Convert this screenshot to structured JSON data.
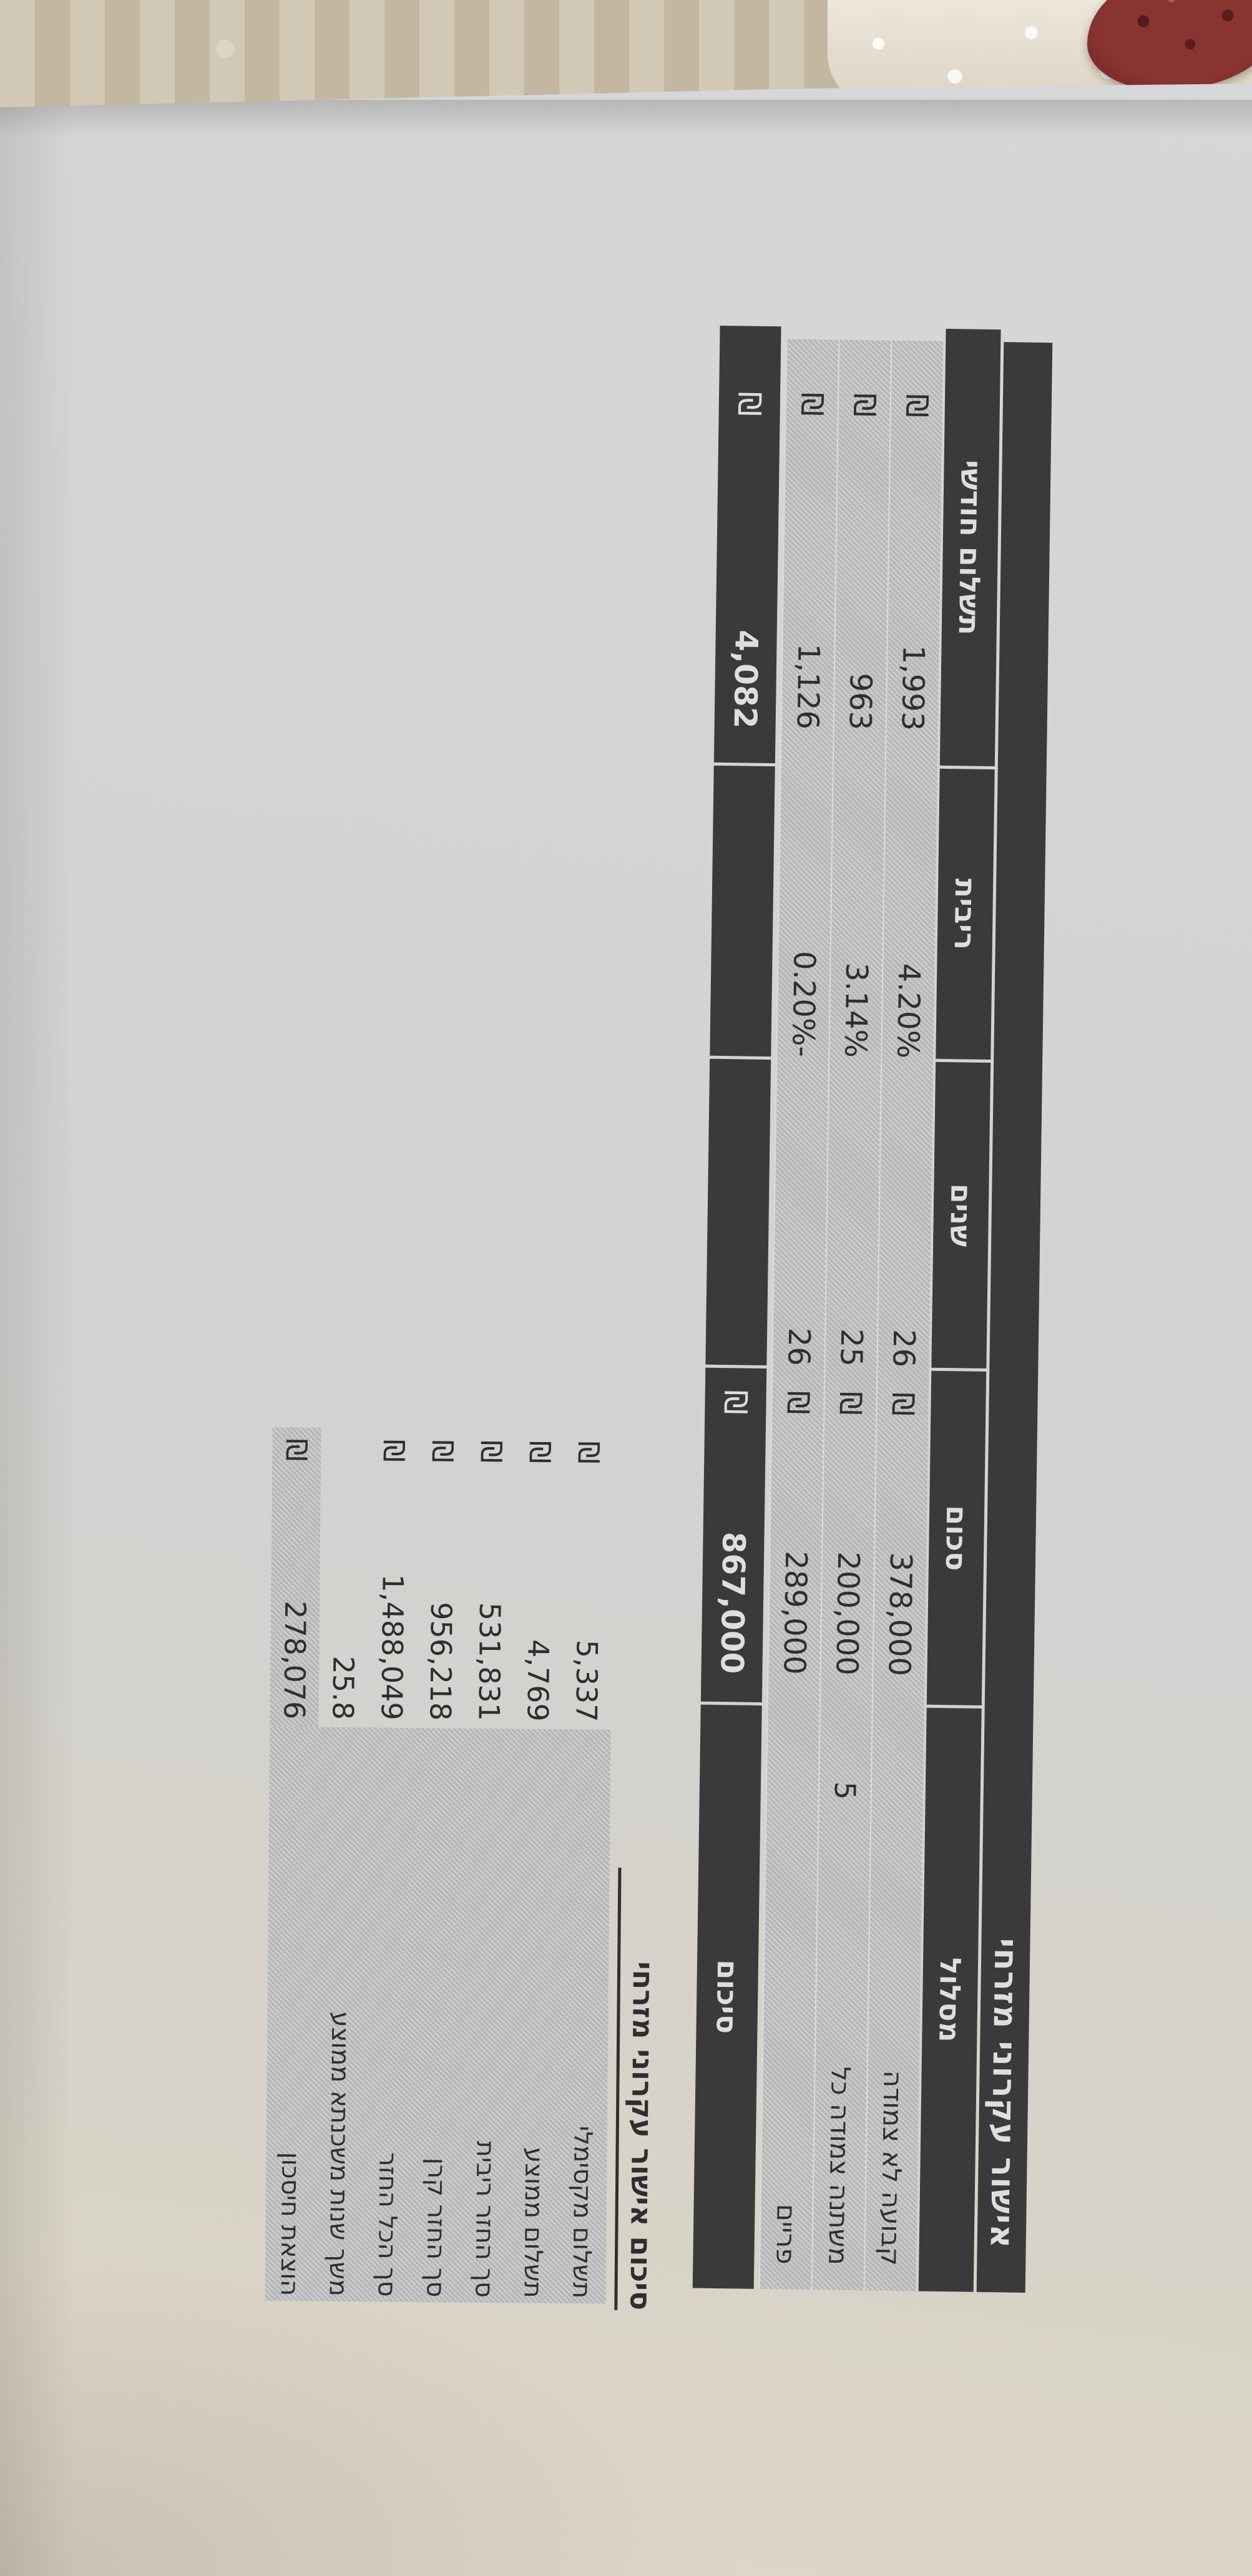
{
  "currency_symbol": "₪",
  "colors": {
    "paper": "#d3d4d6",
    "bar_black": "#3a3a3d",
    "row_gray": "#bcbdbf",
    "cloth_tan": "#cbc0ac",
    "crochet_red": "#8a3431",
    "ink": "#2e2e31"
  },
  "main_table": {
    "title": "אישור עקרוני מזרחי",
    "columns": {
      "track": "מסלול",
      "amount": "סכום",
      "years": "שנים",
      "rate": "ריבית",
      "payment": "תשלום חודשי"
    },
    "rows": [
      {
        "track": "קבועה לא צמודה",
        "track_suffix": "",
        "amount": "378,000",
        "years": "26",
        "rate": "4.20%",
        "payment": "1,993"
      },
      {
        "track": "משתנה צמודה כל",
        "track_suffix": "5",
        "amount": "200,000",
        "years": "25",
        "rate": "3.14%",
        "payment": "963"
      },
      {
        "track": "פריים",
        "track_suffix": "",
        "amount": "289,000",
        "years": "26",
        "rate": "0.20%-",
        "payment": "1,126"
      }
    ],
    "summary_row": {
      "label": "סיכום",
      "amount": "867,000",
      "payment": "4,082"
    }
  },
  "summary_block": {
    "title": "סיכום אישור עקרוני מזרחי",
    "rows": [
      {
        "label": "תשלום מקסימלי",
        "value": "5,337",
        "has_currency": true
      },
      {
        "label": "תשלום ממוצע",
        "value": "4,769",
        "has_currency": true
      },
      {
        "label": "סך החזר ריבית",
        "value": "531,831",
        "has_currency": true
      },
      {
        "label": "סך החזר קרן",
        "value": "956,218",
        "has_currency": true
      },
      {
        "label": "סך הכל החזר",
        "value": "1,488,049",
        "has_currency": true
      },
      {
        "label": "משך שנות משכנתא ממוצע",
        "value": "25.8",
        "has_currency": false
      },
      {
        "label": "הוצאת חיסכון",
        "value": "278,076",
        "has_currency": true
      }
    ]
  }
}
